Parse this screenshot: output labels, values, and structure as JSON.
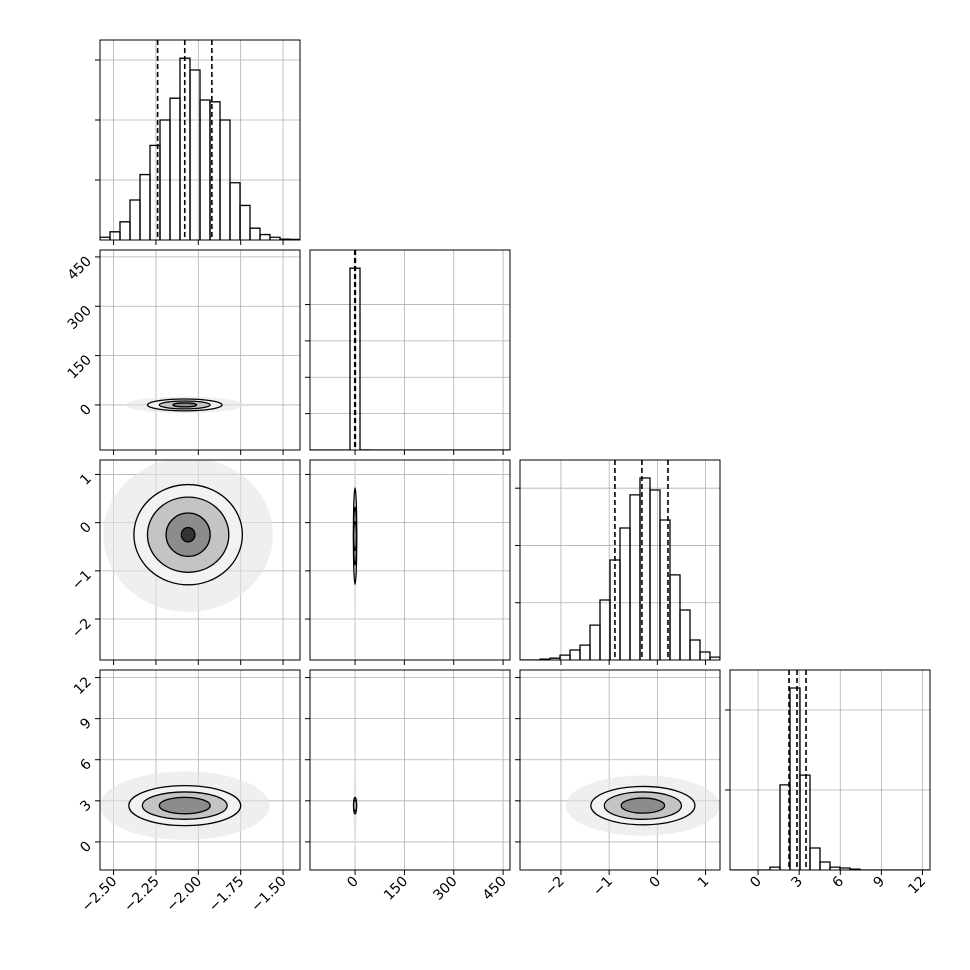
{
  "chart_data": {
    "type": "corner",
    "params": [
      {
        "xlim": [
          -2.58,
          -1.4
        ],
        "ticks": [
          {
            "value": -2.5,
            "label": "−2.50"
          },
          {
            "value": -2.25,
            "label": "−2.25"
          },
          {
            "value": -2.0,
            "label": "−2.00"
          },
          {
            "value": -1.75,
            "label": "−1.75"
          },
          {
            "value": -1.5,
            "label": "−1.50"
          }
        ]
      },
      {
        "xlim": [
          -137,
          471
        ],
        "ticks": [
          0,
          150,
          300,
          450
        ]
      },
      {
        "xlim": [
          -2.85,
          1.3
        ],
        "ticks": [
          {
            "value": -2,
            "label": "−2"
          },
          {
            "value": -1,
            "label": "−1"
          },
          0,
          1
        ]
      },
      {
        "xlim": [
          -2.05,
          12.55
        ],
        "ticks": [
          0,
          3,
          6,
          9,
          12
        ]
      }
    ],
    "hists": [
      {
        "bins": [
          -2.58,
          -2.521,
          -2.462,
          -2.403,
          -2.344,
          -2.285,
          -2.226,
          -2.167,
          -2.108,
          -2.049,
          -1.99,
          -1.931,
          -1.872,
          -1.813,
          -1.754,
          -1.695,
          -1.636,
          -1.577,
          -1.518,
          -1.459,
          -1.4
        ],
        "counts": [
          15,
          45,
          100,
          220,
          360,
          520,
          660,
          780,
          1000,
          935,
          770,
          760,
          660,
          315,
          190,
          65,
          30,
          15,
          5,
          3
        ],
        "ylim": [
          0,
          1100
        ],
        "yticks": [
          330,
          660,
          990
        ],
        "quantiles": [
          -2.24,
          -2.08,
          -1.92
        ]
      },
      {
        "bins": [
          -137,
          -106.6,
          -76.2,
          -45.8,
          -15.4,
          15,
          45.4,
          75.8,
          106.2,
          136.6,
          167,
          197.4,
          227.8,
          258.2,
          288.6,
          319,
          349.4,
          379.8,
          410.2,
          440.6,
          471
        ],
        "counts": [
          0,
          0,
          0,
          0,
          5000,
          2,
          0,
          0,
          0,
          0,
          0,
          0,
          0,
          0,
          0,
          0,
          0,
          0,
          0,
          0
        ],
        "ylim": [
          0,
          5500
        ],
        "yticks": [
          1000,
          2000,
          3000,
          4000
        ],
        "quantiles": [
          -1,
          0,
          1
        ]
      },
      {
        "bins": [
          -2.85,
          -2.6425,
          -2.435,
          -2.2275,
          -2.02,
          -1.8125,
          -1.605,
          -1.3975,
          -1.19,
          -0.9825,
          -0.775,
          -0.5675,
          -0.36,
          -0.1525,
          0.055,
          0.2625,
          0.47,
          0.6775,
          0.885,
          1.0925,
          1.3
        ],
        "counts": [
          0,
          0,
          5,
          10,
          27,
          55,
          82,
          192,
          330,
          550,
          726,
          908,
          1001,
          935,
          770,
          468,
          275,
          110,
          44,
          16
        ],
        "ylim": [
          0,
          1100
        ],
        "yticks": [
          315,
          630,
          945
        ],
        "quantiles": [
          -0.88,
          -0.32,
          0.22
        ]
      },
      {
        "bins": [
          -2.05,
          -1.32,
          -0.59,
          0.14,
          0.87,
          1.6,
          2.33,
          3.06,
          3.79,
          4.52,
          5.25,
          5.98,
          6.71,
          7.44,
          8.17,
          8.9,
          9.63,
          10.36,
          11.09,
          11.82,
          12.55
        ],
        "counts": [
          0,
          0,
          0,
          0,
          16,
          468,
          1001,
          522,
          121,
          44,
          16,
          11,
          5,
          0,
          0,
          0,
          0,
          0,
          0,
          0
        ],
        "ylim": [
          0,
          1100
        ],
        "yticks": [
          440,
          880
        ],
        "quantiles": [
          2.26,
          2.84,
          3.5
        ]
      }
    ],
    "pairs": [
      {
        "row": 1,
        "col": 0,
        "center": [
          -2.08,
          0
        ],
        "cloud": [
          0.35,
          25
        ],
        "contours": [
          [
            0.22,
            18
          ],
          [
            0.15,
            12
          ],
          [
            0.07,
            6
          ]
        ]
      },
      {
        "row": 2,
        "col": 0,
        "center": [
          -2.06,
          -0.25
        ],
        "cloud": [
          0.5,
          1.6
        ],
        "contours": [
          [
            0.32,
            1.04
          ],
          [
            0.24,
            0.78
          ],
          [
            0.13,
            0.45
          ],
          [
            0.04,
            0.15
          ]
        ]
      },
      {
        "row": 3,
        "col": 0,
        "center": [
          -2.08,
          2.65
        ],
        "cloud": [
          0.5,
          2.5
        ],
        "contours": [
          [
            0.33,
            1.46
          ],
          [
            0.25,
            1.0
          ],
          [
            0.15,
            0.6
          ]
        ]
      },
      {
        "row": 2,
        "col": 1,
        "center": [
          0,
          -0.28
        ],
        "cloud": [
          5,
          1.8
        ],
        "contours": [
          [
            5,
            1.0
          ],
          [
            3,
            0.6
          ],
          [
            1.5,
            0.3
          ]
        ]
      },
      {
        "row": 3,
        "col": 1,
        "center": [
          0,
          2.65
        ],
        "cloud": [
          5,
          3
        ],
        "contours": [
          [
            4,
            0.6
          ],
          [
            2.5,
            0.4
          ]
        ]
      },
      {
        "row": 3,
        "col": 2,
        "center": [
          -0.3,
          2.65
        ],
        "cloud": [
          1.6,
          2.2
        ],
        "contours": [
          [
            1.08,
            1.4
          ],
          [
            0.8,
            1.0
          ],
          [
            0.45,
            0.55
          ]
        ]
      }
    ]
  }
}
